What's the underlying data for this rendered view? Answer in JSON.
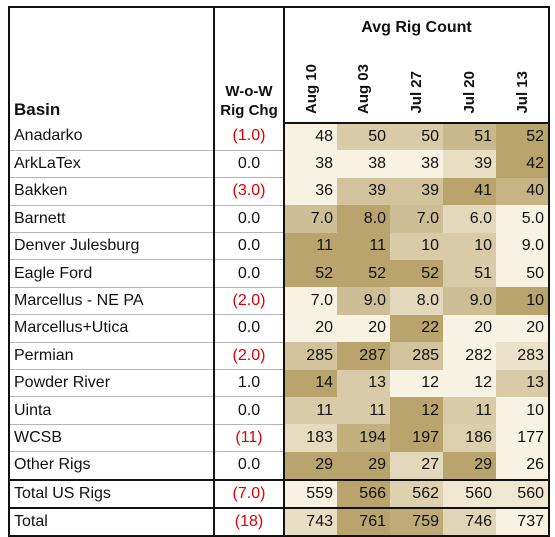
{
  "chart_data": {
    "type": "table",
    "title": "Avg Rig Count",
    "columns": {
      "basin": "Basin",
      "wow_line1": "W-o-W",
      "wow_line2": "Rig Chg",
      "dates": [
        "Aug 10",
        "Aug 03",
        "Jul 27",
        "Jul 20",
        "Jul 13"
      ]
    },
    "rows": [
      {
        "basin": "Anadarko",
        "wow": "(1.0)",
        "negative": true,
        "values": [
          "48",
          "50",
          "50",
          "51",
          "52"
        ],
        "nums": [
          48,
          50,
          50,
          51,
          52
        ]
      },
      {
        "basin": "ArkLaTex",
        "wow": "0.0",
        "negative": false,
        "values": [
          "38",
          "38",
          "38",
          "39",
          "42"
        ],
        "nums": [
          38,
          38,
          38,
          39,
          42
        ]
      },
      {
        "basin": "Bakken",
        "wow": "(3.0)",
        "negative": true,
        "values": [
          "36",
          "39",
          "39",
          "41",
          "40"
        ],
        "nums": [
          36,
          39,
          39,
          41,
          40
        ]
      },
      {
        "basin": "Barnett",
        "wow": "0.0",
        "negative": false,
        "values": [
          "7.0",
          "8.0",
          "7.0",
          "6.0",
          "5.0"
        ],
        "nums": [
          7,
          8,
          7,
          6,
          5
        ]
      },
      {
        "basin": "Denver Julesburg",
        "wow": "0.0",
        "negative": false,
        "values": [
          "11",
          "11",
          "10",
          "10",
          "9.0"
        ],
        "nums": [
          11,
          11,
          10,
          10,
          9
        ]
      },
      {
        "basin": "Eagle Ford",
        "wow": "0.0",
        "negative": false,
        "values": [
          "52",
          "52",
          "52",
          "51",
          "50"
        ],
        "nums": [
          52,
          52,
          52,
          51,
          50
        ]
      },
      {
        "basin": "Marcellus - NE PA",
        "wow": "(2.0)",
        "negative": true,
        "values": [
          "7.0",
          "9.0",
          "8.0",
          "9.0",
          "10"
        ],
        "nums": [
          7,
          9,
          8,
          9,
          10
        ]
      },
      {
        "basin": "Marcellus+Utica",
        "wow": "0.0",
        "negative": false,
        "values": [
          "20",
          "20",
          "22",
          "20",
          "20"
        ],
        "nums": [
          20,
          20,
          22,
          20,
          20
        ]
      },
      {
        "basin": "Permian",
        "wow": "(2.0)",
        "negative": true,
        "values": [
          "285",
          "287",
          "285",
          "282",
          "283"
        ],
        "nums": [
          285,
          287,
          285,
          282,
          283
        ]
      },
      {
        "basin": "Powder River",
        "wow": "1.0",
        "negative": false,
        "values": [
          "14",
          "13",
          "12",
          "12",
          "13"
        ],
        "nums": [
          14,
          13,
          12,
          12,
          13
        ]
      },
      {
        "basin": "Uinta",
        "wow": "0.0",
        "negative": false,
        "values": [
          "11",
          "11",
          "12",
          "11",
          "10"
        ],
        "nums": [
          11,
          11,
          12,
          11,
          10
        ]
      },
      {
        "basin": "WCSB",
        "wow": "(11)",
        "negative": true,
        "values": [
          "183",
          "194",
          "197",
          "186",
          "177"
        ],
        "nums": [
          183,
          194,
          197,
          186,
          177
        ]
      },
      {
        "basin": "Other Rigs",
        "wow": "0.0",
        "negative": false,
        "values": [
          "29",
          "29",
          "27",
          "29",
          "26"
        ],
        "nums": [
          29,
          29,
          27,
          29,
          26
        ]
      }
    ],
    "totals": [
      {
        "basin": "Total US Rigs",
        "wow": "(7.0)",
        "negative": true,
        "values": [
          "559",
          "566",
          "562",
          "560",
          "560"
        ],
        "nums": [
          559,
          566,
          562,
          560,
          560
        ]
      },
      {
        "basin": "Total",
        "wow": "(18)",
        "negative": true,
        "values": [
          "743",
          "761",
          "759",
          "746",
          "737"
        ],
        "nums": [
          743,
          761,
          759,
          746,
          737
        ]
      }
    ],
    "heatmap_colors": {
      "low": "#f8f2e2",
      "high": "#b9a46e"
    }
  }
}
